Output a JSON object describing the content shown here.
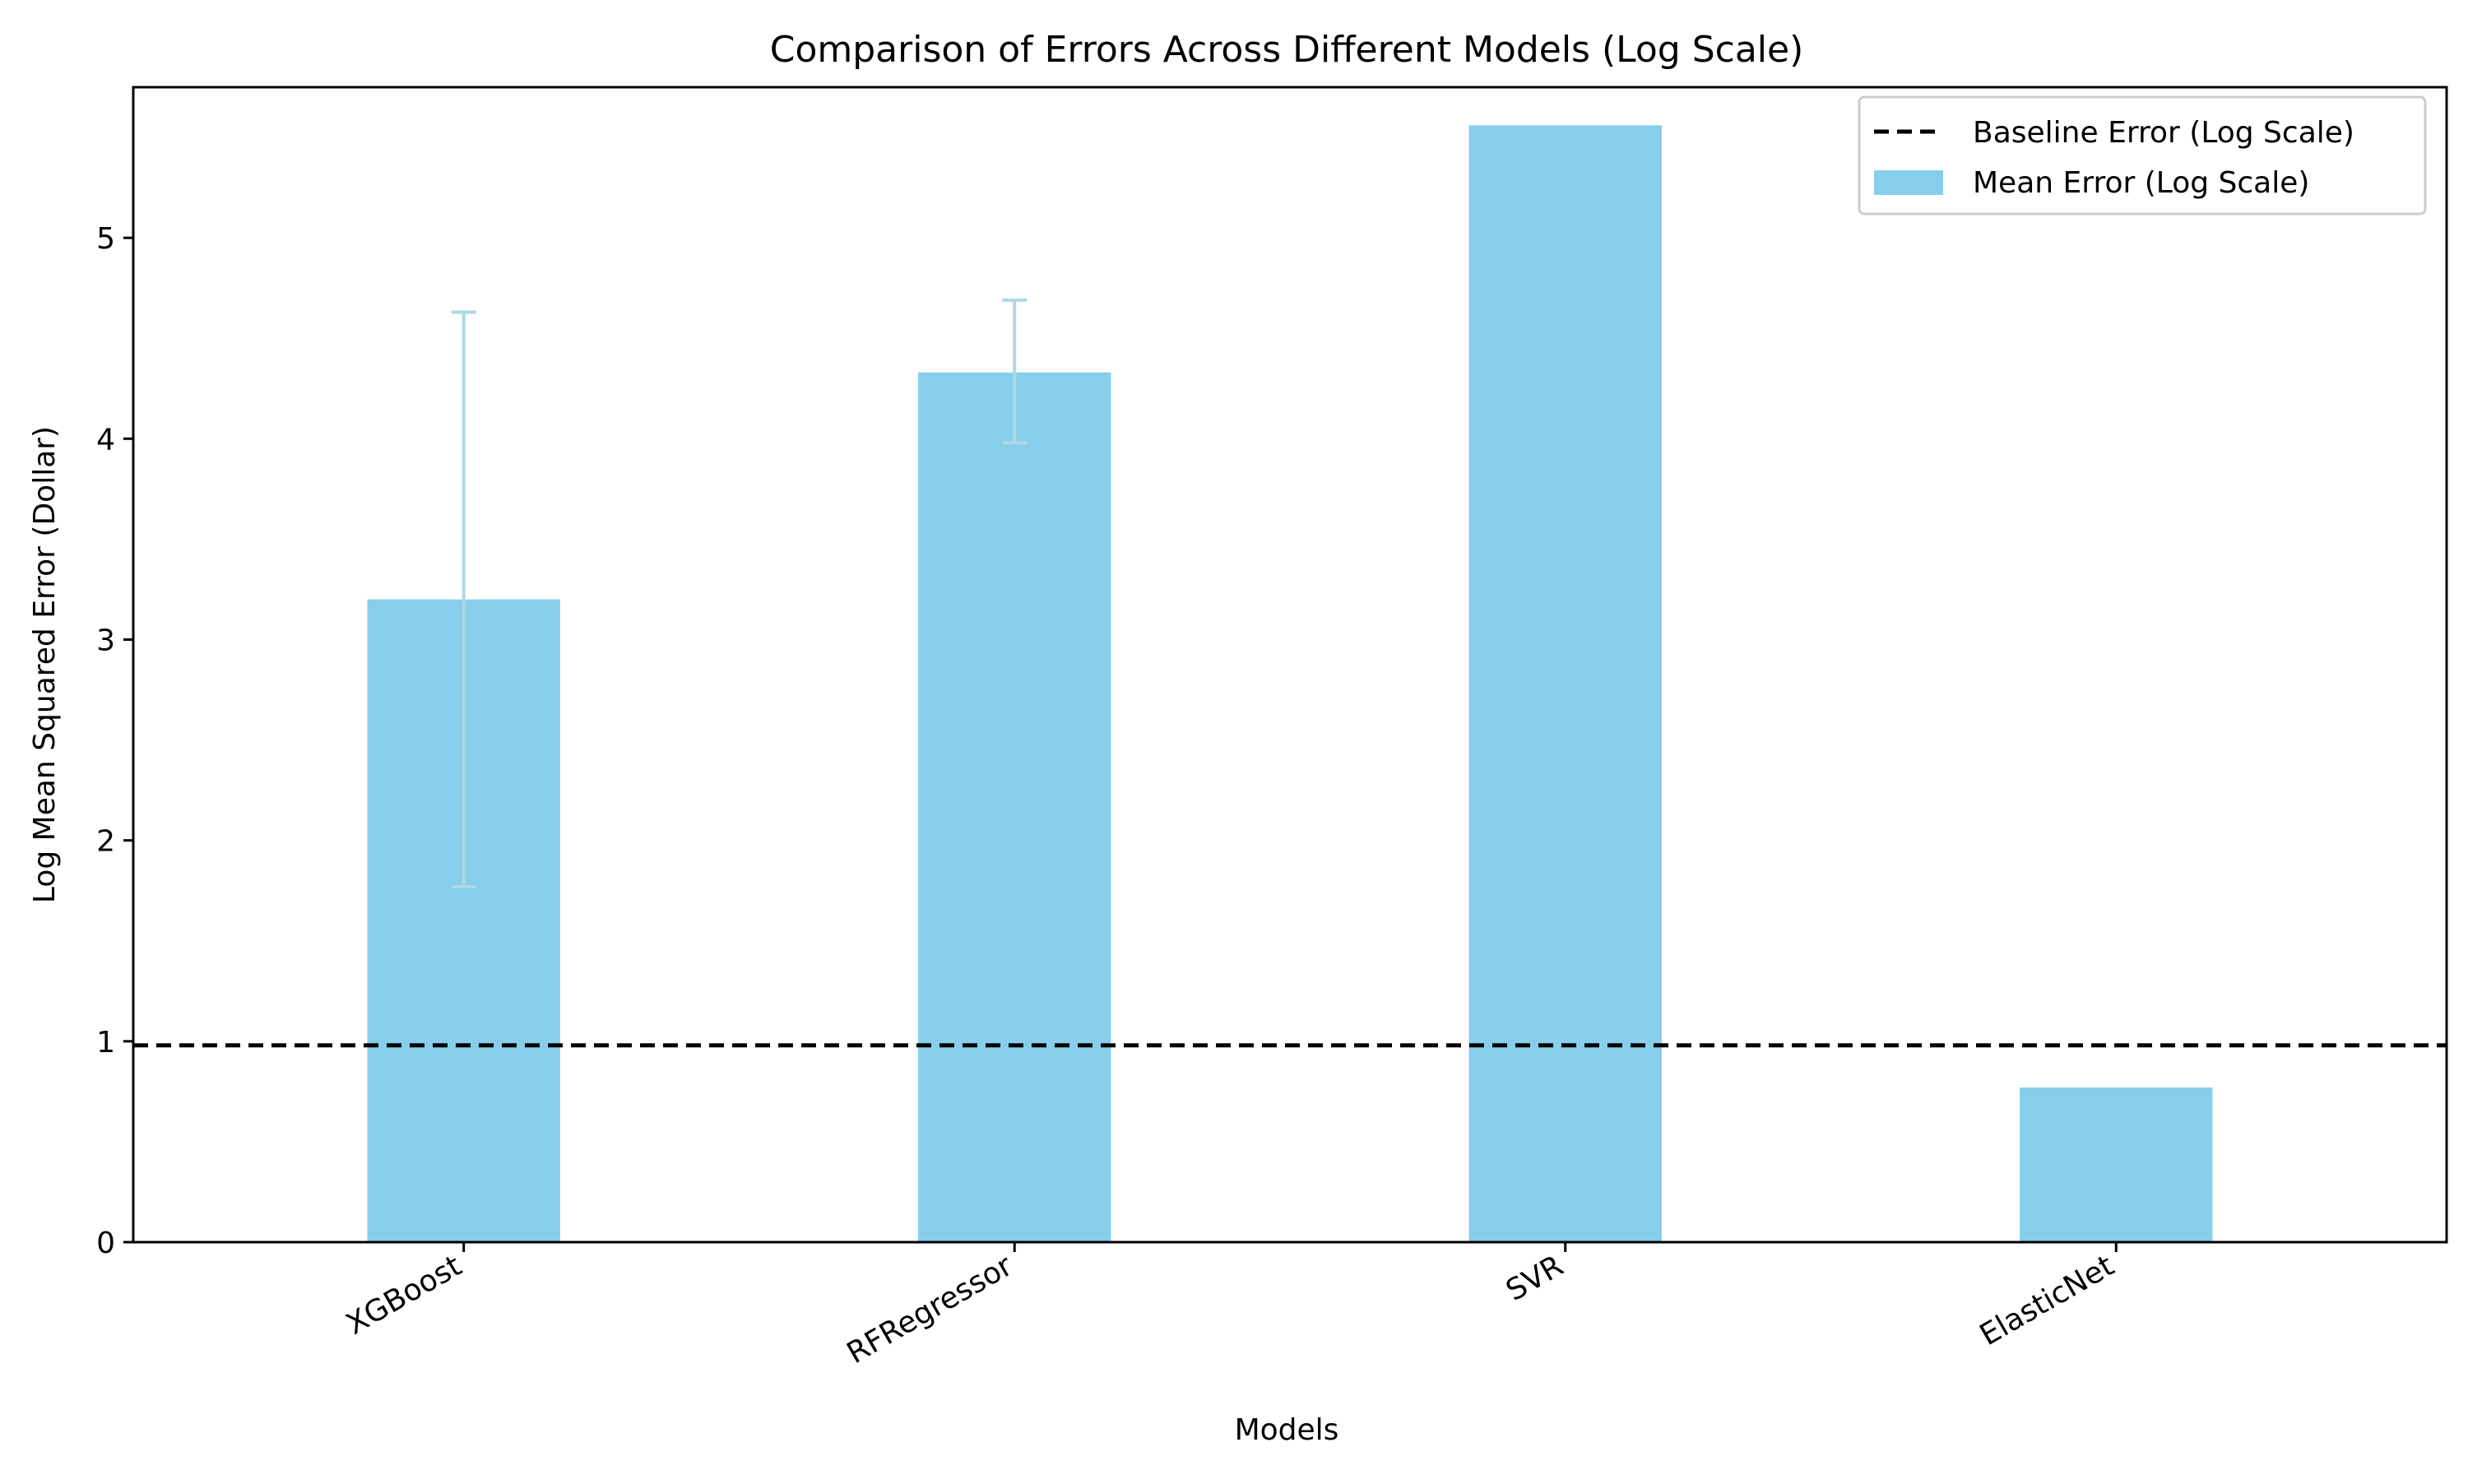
{
  "chart_data": {
    "type": "bar",
    "title": "Comparison of Errors Across Different Models (Log Scale)",
    "xlabel": "Models",
    "ylabel": "Log Mean Squared Error (Dollar)",
    "categories": [
      "XGBoost",
      "RFRegressor",
      "SVR",
      "ElasticNet"
    ],
    "series": [
      {
        "name": "Mean Error (Log Scale)",
        "values": [
          3.2,
          4.33,
          5.56,
          0.77
        ],
        "error_low": [
          1.77,
          3.98,
          null,
          null
        ],
        "error_high": [
          4.63,
          4.69,
          null,
          null
        ],
        "color": "#87CEEB",
        "error_color": "#ADD8E6"
      }
    ],
    "baseline": {
      "name": "Baseline Error (Log Scale)",
      "value": 0.98,
      "color": "#000000",
      "style": "dashed"
    },
    "ylim": [
      0,
      5.75
    ],
    "yticks": [
      0,
      1,
      2,
      3,
      4,
      5
    ],
    "ytick_labels": [
      "0",
      "1",
      "2",
      "3",
      "4",
      "5"
    ],
    "xtick_rotation": -30,
    "grid": false,
    "legend_position": "top-right"
  }
}
